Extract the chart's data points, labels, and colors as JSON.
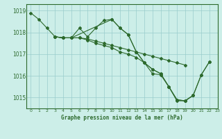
{
  "title": "Graphe pression niveau de la mer (hPa)",
  "xlim": [
    -0.5,
    23
  ],
  "ylim": [
    1014.5,
    1019.3
  ],
  "yticks": [
    1015,
    1016,
    1017,
    1018,
    1019
  ],
  "xticks": [
    0,
    1,
    2,
    3,
    4,
    5,
    6,
    7,
    8,
    9,
    10,
    11,
    12,
    13,
    14,
    15,
    16,
    17,
    18,
    19,
    20,
    21,
    22,
    23
  ],
  "bg_color": "#cceee8",
  "grid_color": "#99cccc",
  "line_color": "#2d6a2d",
  "series": [
    {
      "points": [
        [
          0,
          1018.9
        ],
        [
          1,
          1018.6
        ],
        [
          2,
          1018.2
        ],
        [
          3,
          1017.8
        ],
        [
          4,
          1017.75
        ],
        [
          5,
          1017.75
        ],
        [
          10,
          1018.6
        ],
        [
          11,
          1018.2
        ],
        [
          12,
          1017.9
        ],
        [
          13,
          1017.1
        ],
        [
          14,
          1016.6
        ],
        [
          15,
          1016.1
        ],
        [
          16,
          1016.05
        ],
        [
          17,
          1015.5
        ],
        [
          18,
          1014.9
        ],
        [
          19,
          1014.85
        ],
        [
          20,
          1015.1
        ],
        [
          21,
          1016.05
        ],
        [
          22,
          1016.65
        ]
      ]
    },
    {
      "points": [
        [
          3,
          1017.8
        ],
        [
          4,
          1017.75
        ],
        [
          5,
          1017.75
        ],
        [
          6,
          1017.75
        ],
        [
          7,
          1017.7
        ],
        [
          8,
          1017.6
        ],
        [
          9,
          1017.5
        ],
        [
          10,
          1017.4
        ],
        [
          11,
          1017.3
        ],
        [
          12,
          1017.2
        ],
        [
          13,
          1017.1
        ],
        [
          14,
          1017.0
        ],
        [
          15,
          1016.9
        ],
        [
          16,
          1016.8
        ],
        [
          17,
          1016.7
        ],
        [
          18,
          1016.6
        ],
        [
          19,
          1016.5
        ]
      ]
    },
    {
      "points": [
        [
          3,
          1017.8
        ],
        [
          4,
          1017.75
        ],
        [
          5,
          1017.75
        ],
        [
          6,
          1017.75
        ],
        [
          7,
          1017.65
        ],
        [
          8,
          1017.5
        ],
        [
          9,
          1017.4
        ],
        [
          10,
          1017.3
        ],
        [
          11,
          1017.1
        ],
        [
          12,
          1017.0
        ],
        [
          13,
          1016.85
        ],
        [
          14,
          1016.6
        ],
        [
          15,
          1016.3
        ],
        [
          16,
          1016.1
        ],
        [
          17,
          1015.5
        ],
        [
          18,
          1014.85
        ],
        [
          19,
          1014.85
        ],
        [
          20,
          1015.1
        ]
      ]
    },
    {
      "points": [
        [
          3,
          1017.8
        ],
        [
          4,
          1017.75
        ],
        [
          5,
          1017.75
        ],
        [
          6,
          1018.2
        ],
        [
          7,
          1017.8
        ],
        [
          8,
          1018.2
        ],
        [
          9,
          1018.55
        ],
        [
          10,
          1018.6
        ],
        [
          11,
          1018.2
        ],
        [
          12,
          1017.9
        ],
        [
          13,
          1017.1
        ],
        [
          14,
          1016.6
        ],
        [
          15,
          1016.3
        ],
        [
          16,
          1016.1
        ],
        [
          17,
          1015.5
        ],
        [
          18,
          1014.9
        ],
        [
          19,
          1014.85
        ],
        [
          20,
          1015.1
        ],
        [
          21,
          1016.05
        ],
        [
          22,
          1016.65
        ]
      ]
    }
  ]
}
